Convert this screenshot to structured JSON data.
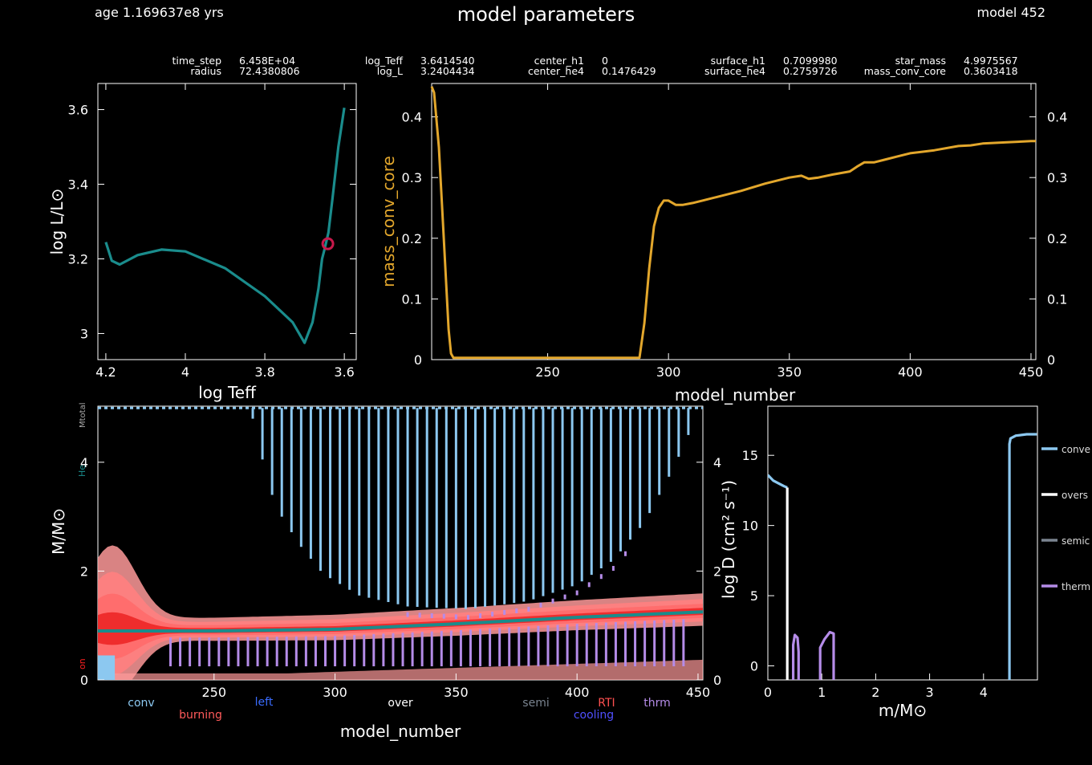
{
  "header": {
    "age": "age 1.169637e8 yrs",
    "title": "model parameters",
    "model": "model 452"
  },
  "params": [
    {
      "name": "time_step",
      "value": "6.458E+04"
    },
    {
      "name": "radius",
      "value": "72.4380806"
    },
    {
      "name": "log_Teff",
      "value": "3.6414540"
    },
    {
      "name": "log_L",
      "value": "3.2404434"
    },
    {
      "name": "center_h1",
      "value": "0"
    },
    {
      "name": "center_he4",
      "value": "0.1476429"
    },
    {
      "name": "surface_h1",
      "value": "0.7099980"
    },
    {
      "name": "surface_he4",
      "value": "0.2759726"
    },
    {
      "name": "star_mass",
      "value": "4.9975567"
    },
    {
      "name": "mass_conv_core",
      "value": "0.3603418"
    }
  ],
  "colors": {
    "track": "#1a8c8c",
    "marker": "#c8194b",
    "core": "#e3a72c",
    "conv": "#8cc8f0",
    "burn_light": "#ff9a9a",
    "burn_mid": "#ff6a6a",
    "burn_dark": "#ee2a2a",
    "thrm": "#b58ce8",
    "over": "#ffffff",
    "semi": "#7a8490",
    "left": "#3a6cff",
    "cooling": "#5050ff",
    "rti": "#ff5050"
  },
  "chart_data": [
    {
      "id": "hr",
      "type": "line",
      "xlabel": "log Teff",
      "ylabel": "log L/L⊙",
      "xlim": [
        4.22,
        3.57
      ],
      "ylim": [
        2.93,
        3.67
      ],
      "xticks": [
        {
          "v": 4.2,
          "t": "4.2"
        },
        {
          "v": 4.0,
          "t": "4"
        },
        {
          "v": 3.8,
          "t": "3.8"
        },
        {
          "v": 3.6,
          "t": "3.6"
        }
      ],
      "yticks": [
        {
          "v": 3.0,
          "t": "3"
        },
        {
          "v": 3.2,
          "t": "3.2"
        },
        {
          "v": 3.4,
          "t": "3.4"
        },
        {
          "v": 3.6,
          "t": "3.6"
        }
      ],
      "track": [
        [
          4.2,
          3.245
        ],
        [
          4.185,
          3.195
        ],
        [
          4.165,
          3.185
        ],
        [
          4.12,
          3.21
        ],
        [
          4.06,
          3.225
        ],
        [
          4.0,
          3.22
        ],
        [
          3.9,
          3.175
        ],
        [
          3.8,
          3.1
        ],
        [
          3.73,
          3.03
        ],
        [
          3.7,
          2.975
        ],
        [
          3.68,
          3.03
        ],
        [
          3.665,
          3.12
        ],
        [
          3.656,
          3.2
        ],
        [
          3.65,
          3.225
        ],
        [
          3.64,
          3.27
        ],
        [
          3.63,
          3.36
        ],
        [
          3.615,
          3.5
        ],
        [
          3.6,
          3.605
        ]
      ],
      "current": [
        3.641454,
        3.2404434
      ]
    },
    {
      "id": "core",
      "type": "line",
      "xlabel": "model_number",
      "ylabel": "mass_conv_core",
      "xlim": [
        202,
        452
      ],
      "ylim": [
        0,
        0.455
      ],
      "xticks": [
        {
          "v": 250,
          "t": "250"
        },
        {
          "v": 300,
          "t": "300"
        },
        {
          "v": 350,
          "t": "350"
        },
        {
          "v": 400,
          "t": "400"
        },
        {
          "v": 450,
          "t": "450"
        }
      ],
      "yticks": [
        {
          "v": 0,
          "t": "0"
        },
        {
          "v": 0.1,
          "t": "0.1"
        },
        {
          "v": 0.2,
          "t": "0.2"
        },
        {
          "v": 0.3,
          "t": "0.3"
        },
        {
          "v": 0.4,
          "t": "0.4"
        }
      ],
      "x": [
        202,
        203,
        205,
        207,
        209,
        210,
        211,
        220,
        240,
        260,
        280,
        288,
        290,
        292,
        294,
        296,
        298,
        300,
        303,
        306,
        310,
        315,
        320,
        330,
        340,
        350,
        355,
        358,
        362,
        368,
        375,
        378,
        381,
        385,
        390,
        395,
        400,
        410,
        420,
        425,
        430,
        440,
        450,
        452
      ],
      "y": [
        0.45,
        0.44,
        0.35,
        0.2,
        0.05,
        0.01,
        0.003,
        0.003,
        0.003,
        0.003,
        0.003,
        0.003,
        0.06,
        0.15,
        0.22,
        0.25,
        0.262,
        0.262,
        0.255,
        0.255,
        0.258,
        0.263,
        0.268,
        0.278,
        0.29,
        0.3,
        0.303,
        0.298,
        0.3,
        0.305,
        0.31,
        0.318,
        0.325,
        0.325,
        0.33,
        0.335,
        0.34,
        0.345,
        0.352,
        0.353,
        0.356,
        0.358,
        0.36,
        0.36
      ]
    },
    {
      "id": "kipp",
      "type": "area",
      "xlabel": "model_number",
      "ylabel": "M/M⊙",
      "y2label": "log D (cm² s⁻¹)",
      "xlim": [
        202,
        452
      ],
      "ylim": [
        0,
        5.03
      ],
      "xticks": [
        {
          "v": 250,
          "t": "250"
        },
        {
          "v": 300,
          "t": "300"
        },
        {
          "v": 350,
          "t": "350"
        },
        {
          "v": 400,
          "t": "400"
        },
        {
          "v": 450,
          "t": "450"
        }
      ],
      "yticks": [
        {
          "v": 0,
          "t": "0"
        },
        {
          "v": 2,
          "t": "2"
        },
        {
          "v": 4,
          "t": "4"
        }
      ],
      "y2ticks": [
        {
          "v": 0,
          "t": "0"
        },
        {
          "v": 2,
          "t": "2"
        },
        {
          "v": 4,
          "t": "4"
        }
      ],
      "total_label": "Mtotal",
      "he_label": "He",
      "h_label": "on",
      "total_mass": 4.9975567,
      "env_bottom": [
        [
          265,
          4.95
        ],
        [
          268,
          4.5
        ],
        [
          272,
          3.6
        ],
        [
          278,
          3.0
        ],
        [
          285,
          2.5
        ],
        [
          295,
          1.95
        ],
        [
          310,
          1.55
        ],
        [
          330,
          1.35
        ],
        [
          355,
          1.3
        ],
        [
          380,
          1.45
        ],
        [
          400,
          1.75
        ],
        [
          415,
          2.2
        ],
        [
          428,
          2.9
        ],
        [
          440,
          3.9
        ],
        [
          447,
          4.6
        ],
        [
          450,
          4.95
        ]
      ],
      "h_shell": [
        [
          202,
          0.9
        ],
        [
          250,
          0.9
        ],
        [
          300,
          0.93
        ],
        [
          350,
          1.03
        ],
        [
          400,
          1.15
        ],
        [
          452,
          1.25
        ]
      ],
      "legend": [
        {
          "text": "conv",
          "color": "#8cc8f0"
        },
        {
          "text": "burning",
          "color": "#ff5a5a"
        },
        {
          "text": "left",
          "color": "#3a6cff"
        },
        {
          "text": "over",
          "color": "#ffffff"
        },
        {
          "text": "semi",
          "color": "#7a8490"
        },
        {
          "text": "RTI",
          "color": "#ff5050"
        },
        {
          "text": "cooling",
          "color": "#5050ff"
        },
        {
          "text": "thrm",
          "color": "#b58ce8"
        }
      ]
    },
    {
      "id": "mix",
      "type": "line",
      "xlabel": "m/M⊙",
      "ylabel": "log D (cm² s⁻¹)",
      "xlim": [
        0,
        5.0
      ],
      "ylim": [
        -1.0,
        18.5
      ],
      "xticks": [
        {
          "v": 0,
          "t": "0"
        },
        {
          "v": 1,
          "t": "1"
        },
        {
          "v": 2,
          "t": "2"
        },
        {
          "v": 3,
          "t": "3"
        },
        {
          "v": 4,
          "t": "4"
        }
      ],
      "yticks": [
        {
          "v": 0,
          "t": "0"
        },
        {
          "v": 5,
          "t": "5"
        },
        {
          "v": 10,
          "t": "10"
        },
        {
          "v": 15,
          "t": "15"
        }
      ],
      "series": [
        {
          "name": "convection",
          "color": "#8cc8f0",
          "segments": [
            [
              [
                0,
                13.6
              ],
              [
                0.1,
                13.2
              ],
              [
                0.2,
                13.0
              ],
              [
                0.3,
                12.8
              ],
              [
                0.36,
                12.7
              ]
            ],
            [
              [
                4.48,
                -1
              ],
              [
                4.48,
                15.8
              ],
              [
                4.5,
                16.2
              ],
              [
                4.6,
                16.4
              ],
              [
                4.8,
                16.5
              ],
              [
                4.99,
                16.5
              ]
            ]
          ]
        },
        {
          "name": "overshoot",
          "color": "#ffffff",
          "segments": [
            [
              [
                0.36,
                12.7
              ],
              [
                0.36,
                -1
              ]
            ]
          ]
        },
        {
          "name": "semiconvection",
          "color": "#7a8490",
          "segments": []
        },
        {
          "name": "thermohaline",
          "color": "#b58ce8",
          "segments": [
            [
              [
                0.47,
                -1
              ],
              [
                0.47,
                1.5
              ],
              [
                0.5,
                2.2
              ],
              [
                0.55,
                2.0
              ],
              [
                0.57,
                1.0
              ],
              [
                0.57,
                -1
              ]
            ],
            [
              [
                0.97,
                -1
              ],
              [
                0.97,
                1.3
              ],
              [
                1.05,
                1.9
              ],
              [
                1.15,
                2.4
              ],
              [
                1.22,
                2.3
              ],
              [
                1.22,
                -1
              ]
            ]
          ]
        }
      ],
      "legend": [
        {
          "text": "conve",
          "color": "#8cc8f0"
        },
        {
          "text": "overs",
          "color": "#ffffff"
        },
        {
          "text": "semic",
          "color": "#7a8490"
        },
        {
          "text": "therm",
          "color": "#b58ce8"
        }
      ]
    }
  ]
}
